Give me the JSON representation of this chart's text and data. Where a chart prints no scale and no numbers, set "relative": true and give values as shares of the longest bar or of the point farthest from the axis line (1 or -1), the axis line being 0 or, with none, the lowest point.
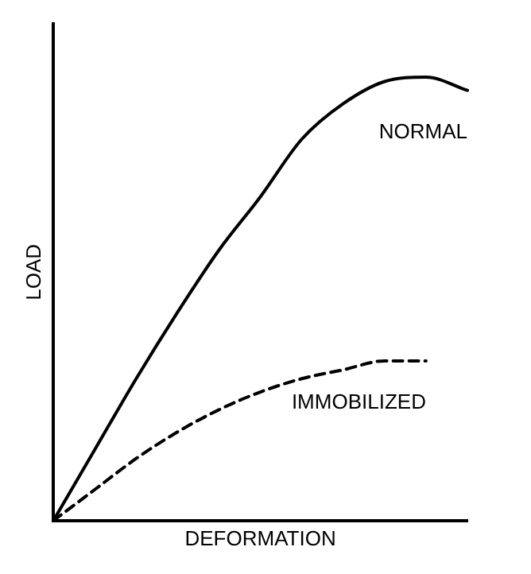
{
  "chart_data": {
    "type": "line",
    "relative": true,
    "xlabel": "DEFORMATION",
    "ylabel": "LOAD",
    "categories": [
      null,
      null,
      null,
      null,
      null,
      null,
      null,
      null,
      null,
      null,
      null
    ],
    "series": [
      {
        "name": "NORMAL",
        "color": "#000000",
        "line_style": "solid",
        "values": [
          0,
          0.16,
          0.32,
          0.47,
          0.61,
          0.73,
          0.86,
          0.94,
          0.99,
          1,
          0.97
        ]
      },
      {
        "name": "IMMOBILIZED",
        "color": "#000000",
        "line_style": "dashed",
        "values": [
          0,
          0.07,
          0.14,
          0.2,
          0.25,
          0.29,
          0.32,
          0.34,
          0.36,
          0.36,
          null
        ]
      }
    ],
    "grid": false,
    "legend": false,
    "marker": "none"
  }
}
